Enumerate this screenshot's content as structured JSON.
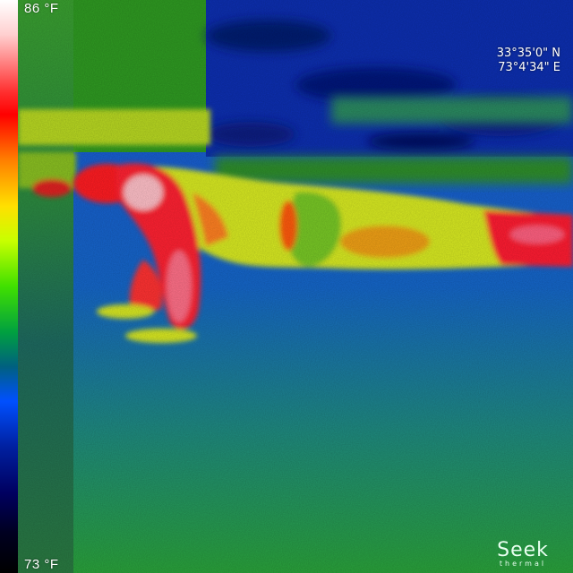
{
  "temperature_scale": {
    "max_label": "86 °F",
    "min_label": "73 °F"
  },
  "gps": {
    "latitude": "33°35'0\" N",
    "longitude": "73°4'34\" E"
  },
  "brand": {
    "name": "Seek",
    "subtitle": "thermal"
  },
  "palette": {
    "hot": "#ff0000",
    "warm": "#ffe000",
    "mid": "#40c000",
    "cool": "#0050ff",
    "cold": "#001060"
  }
}
